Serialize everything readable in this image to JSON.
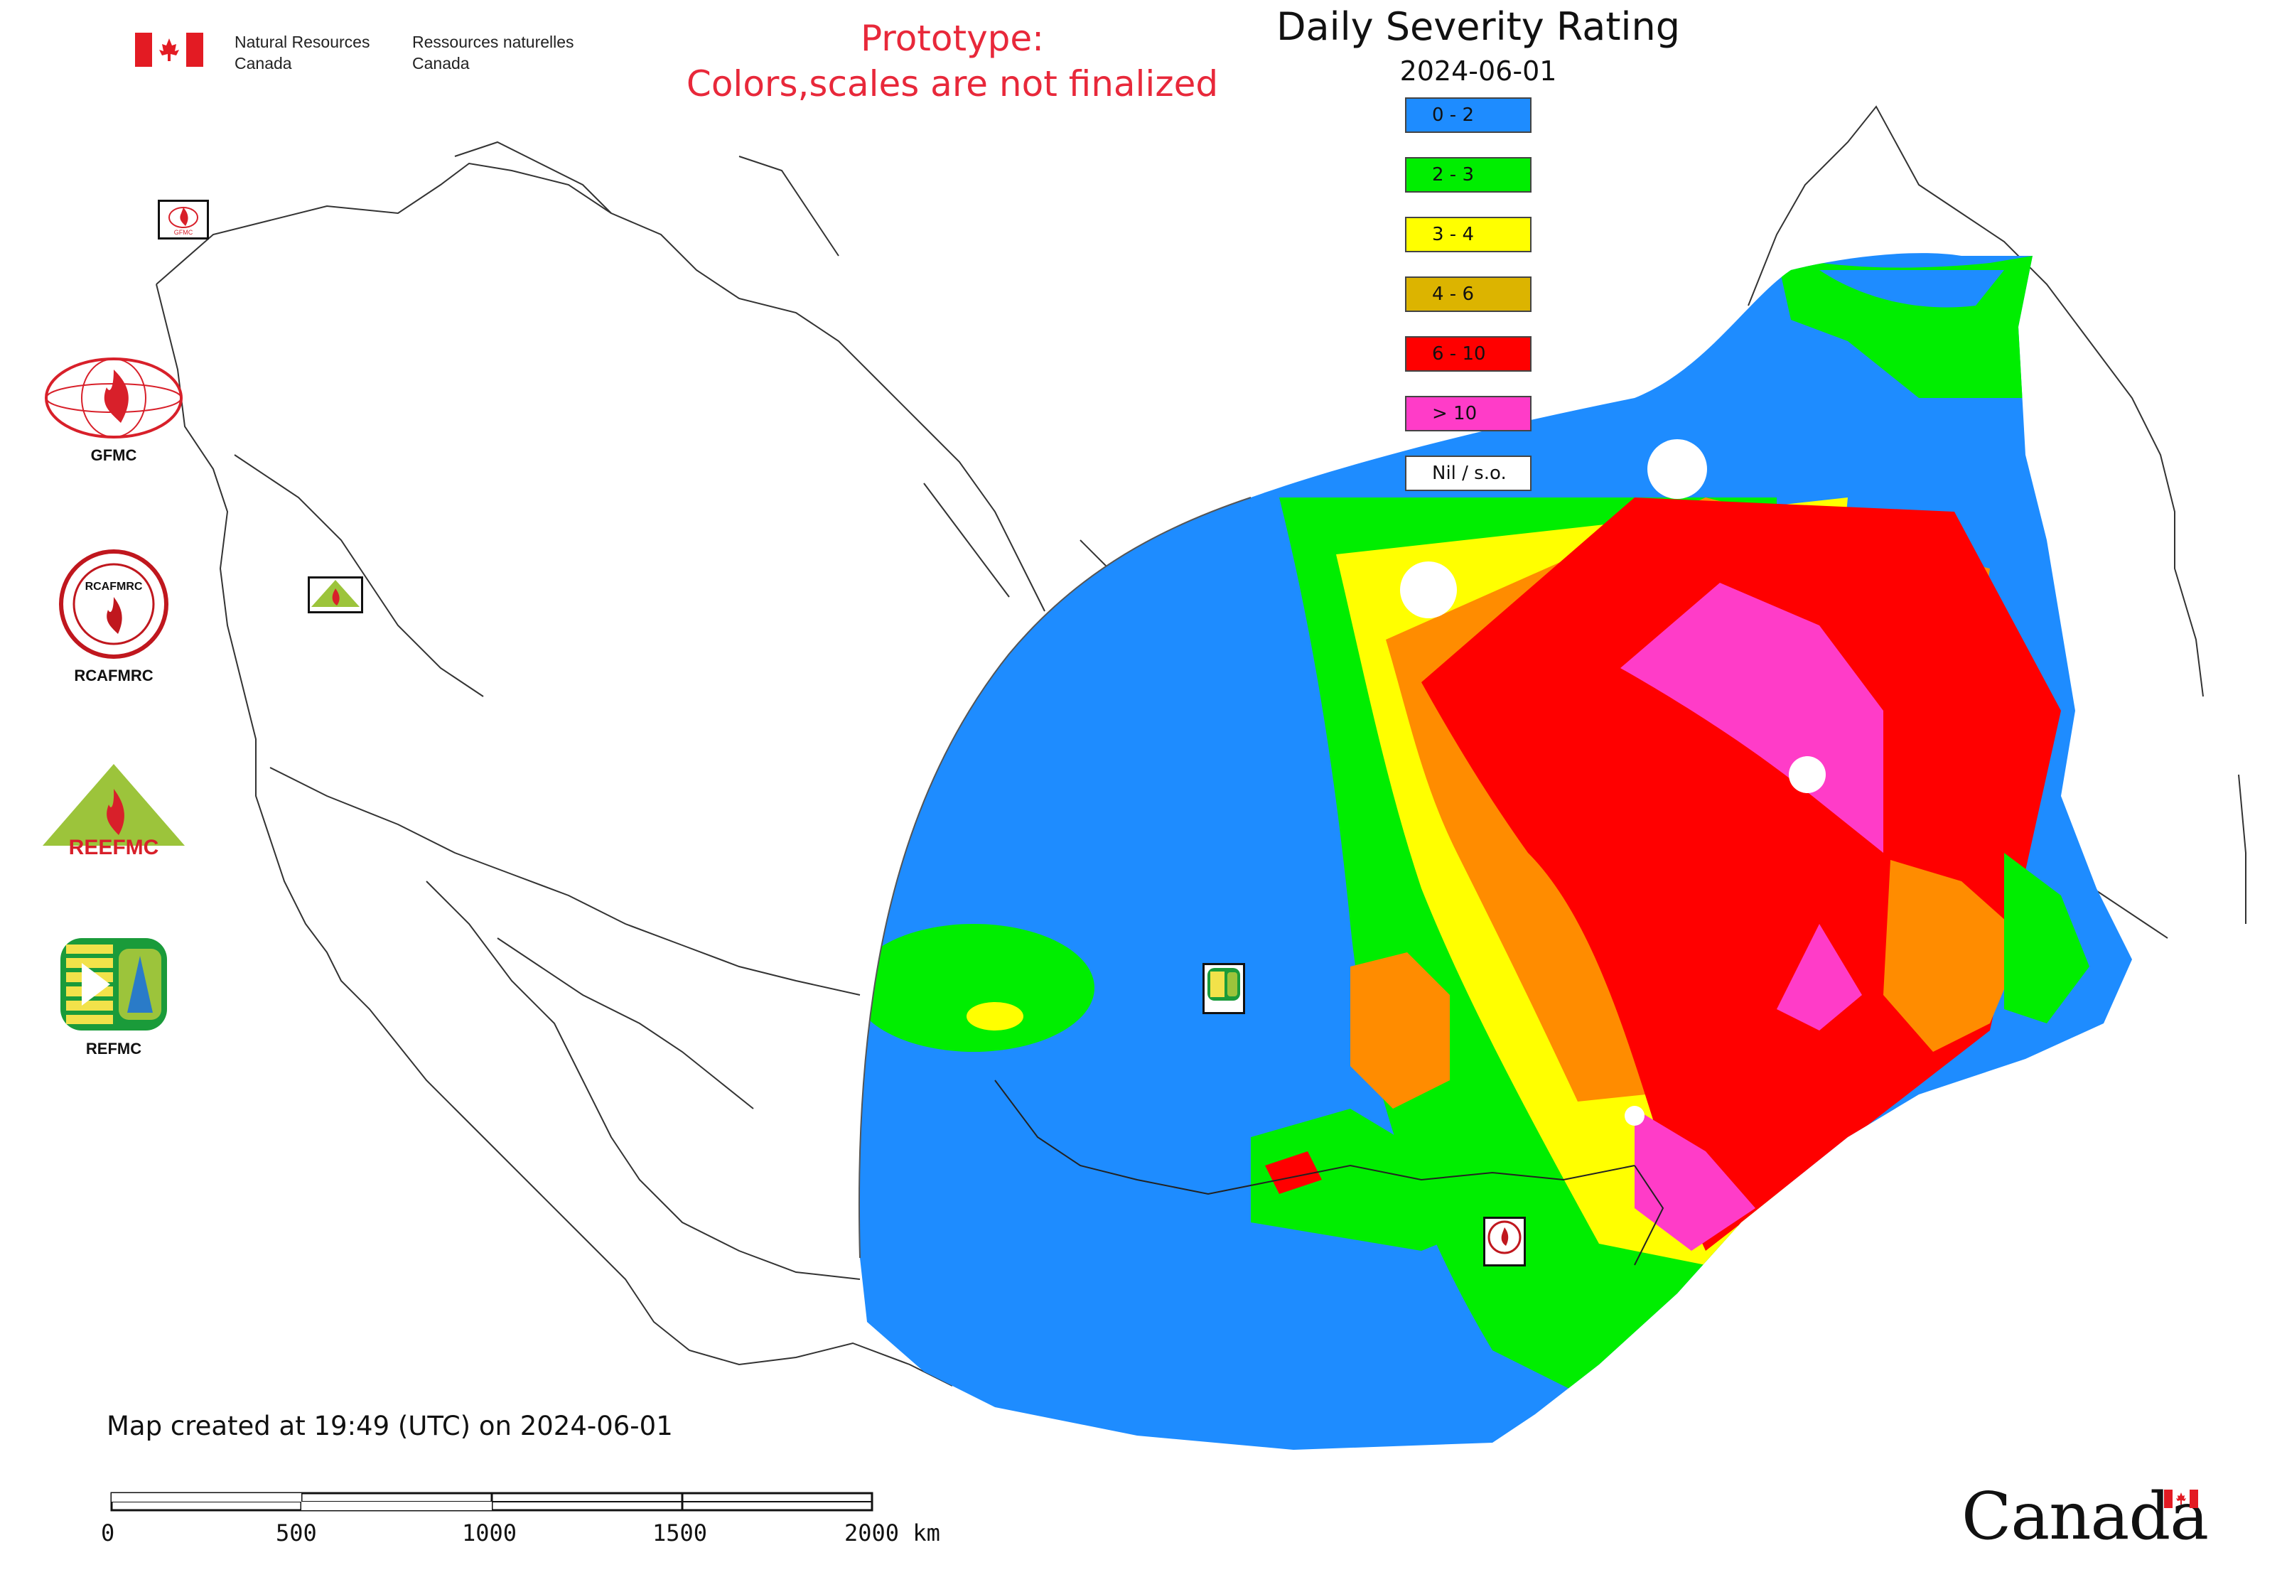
{
  "header": {
    "dept_en_line1": "Natural Resources",
    "dept_en_line2": "Canada",
    "dept_fr_line1": "Ressources naturelles",
    "dept_fr_line2": "Canada",
    "prototype_line1": "Prototype:",
    "prototype_line2": "Colors,scales are not finalized"
  },
  "legend": {
    "title": "Daily Severity Rating",
    "date": "2024-06-01",
    "classes": [
      {
        "label": "0 - 2",
        "color": "#1e8cff"
      },
      {
        "label": "2 - 3",
        "color": "#00ee00"
      },
      {
        "label": "3 - 4",
        "color": "#ffff00"
      },
      {
        "label": "4 - 6",
        "color": "#dcb400"
      },
      {
        "label": "6 - 10",
        "color": "#ff0000"
      },
      {
        "label": "> 10",
        "color": "#ff3cc8"
      },
      {
        "label": "Nil / s.o.",
        "color": "#ffffff"
      }
    ]
  },
  "centers": {
    "gfmc": "GFMC",
    "rcafmrc": "RCAFMRC",
    "reefmc": "REEFMC",
    "refmc": "REFMC",
    "rcafmrc_emblem_text": "RCAFMRC",
    "reefmc_emblem_text": "REEFMC",
    "gfmc_marker_text": "GFMC"
  },
  "footer": {
    "map_created": "Map created at 19:49 (UTC) on 2024-06-01",
    "scale_ticks": [
      "0",
      "500",
      "1000",
      "1500",
      "2000 km"
    ],
    "canada_wordmark": "Canada"
  },
  "colors": {
    "title_red": "#e8283a",
    "flag_red": "#e31b23",
    "border": "#333333"
  }
}
